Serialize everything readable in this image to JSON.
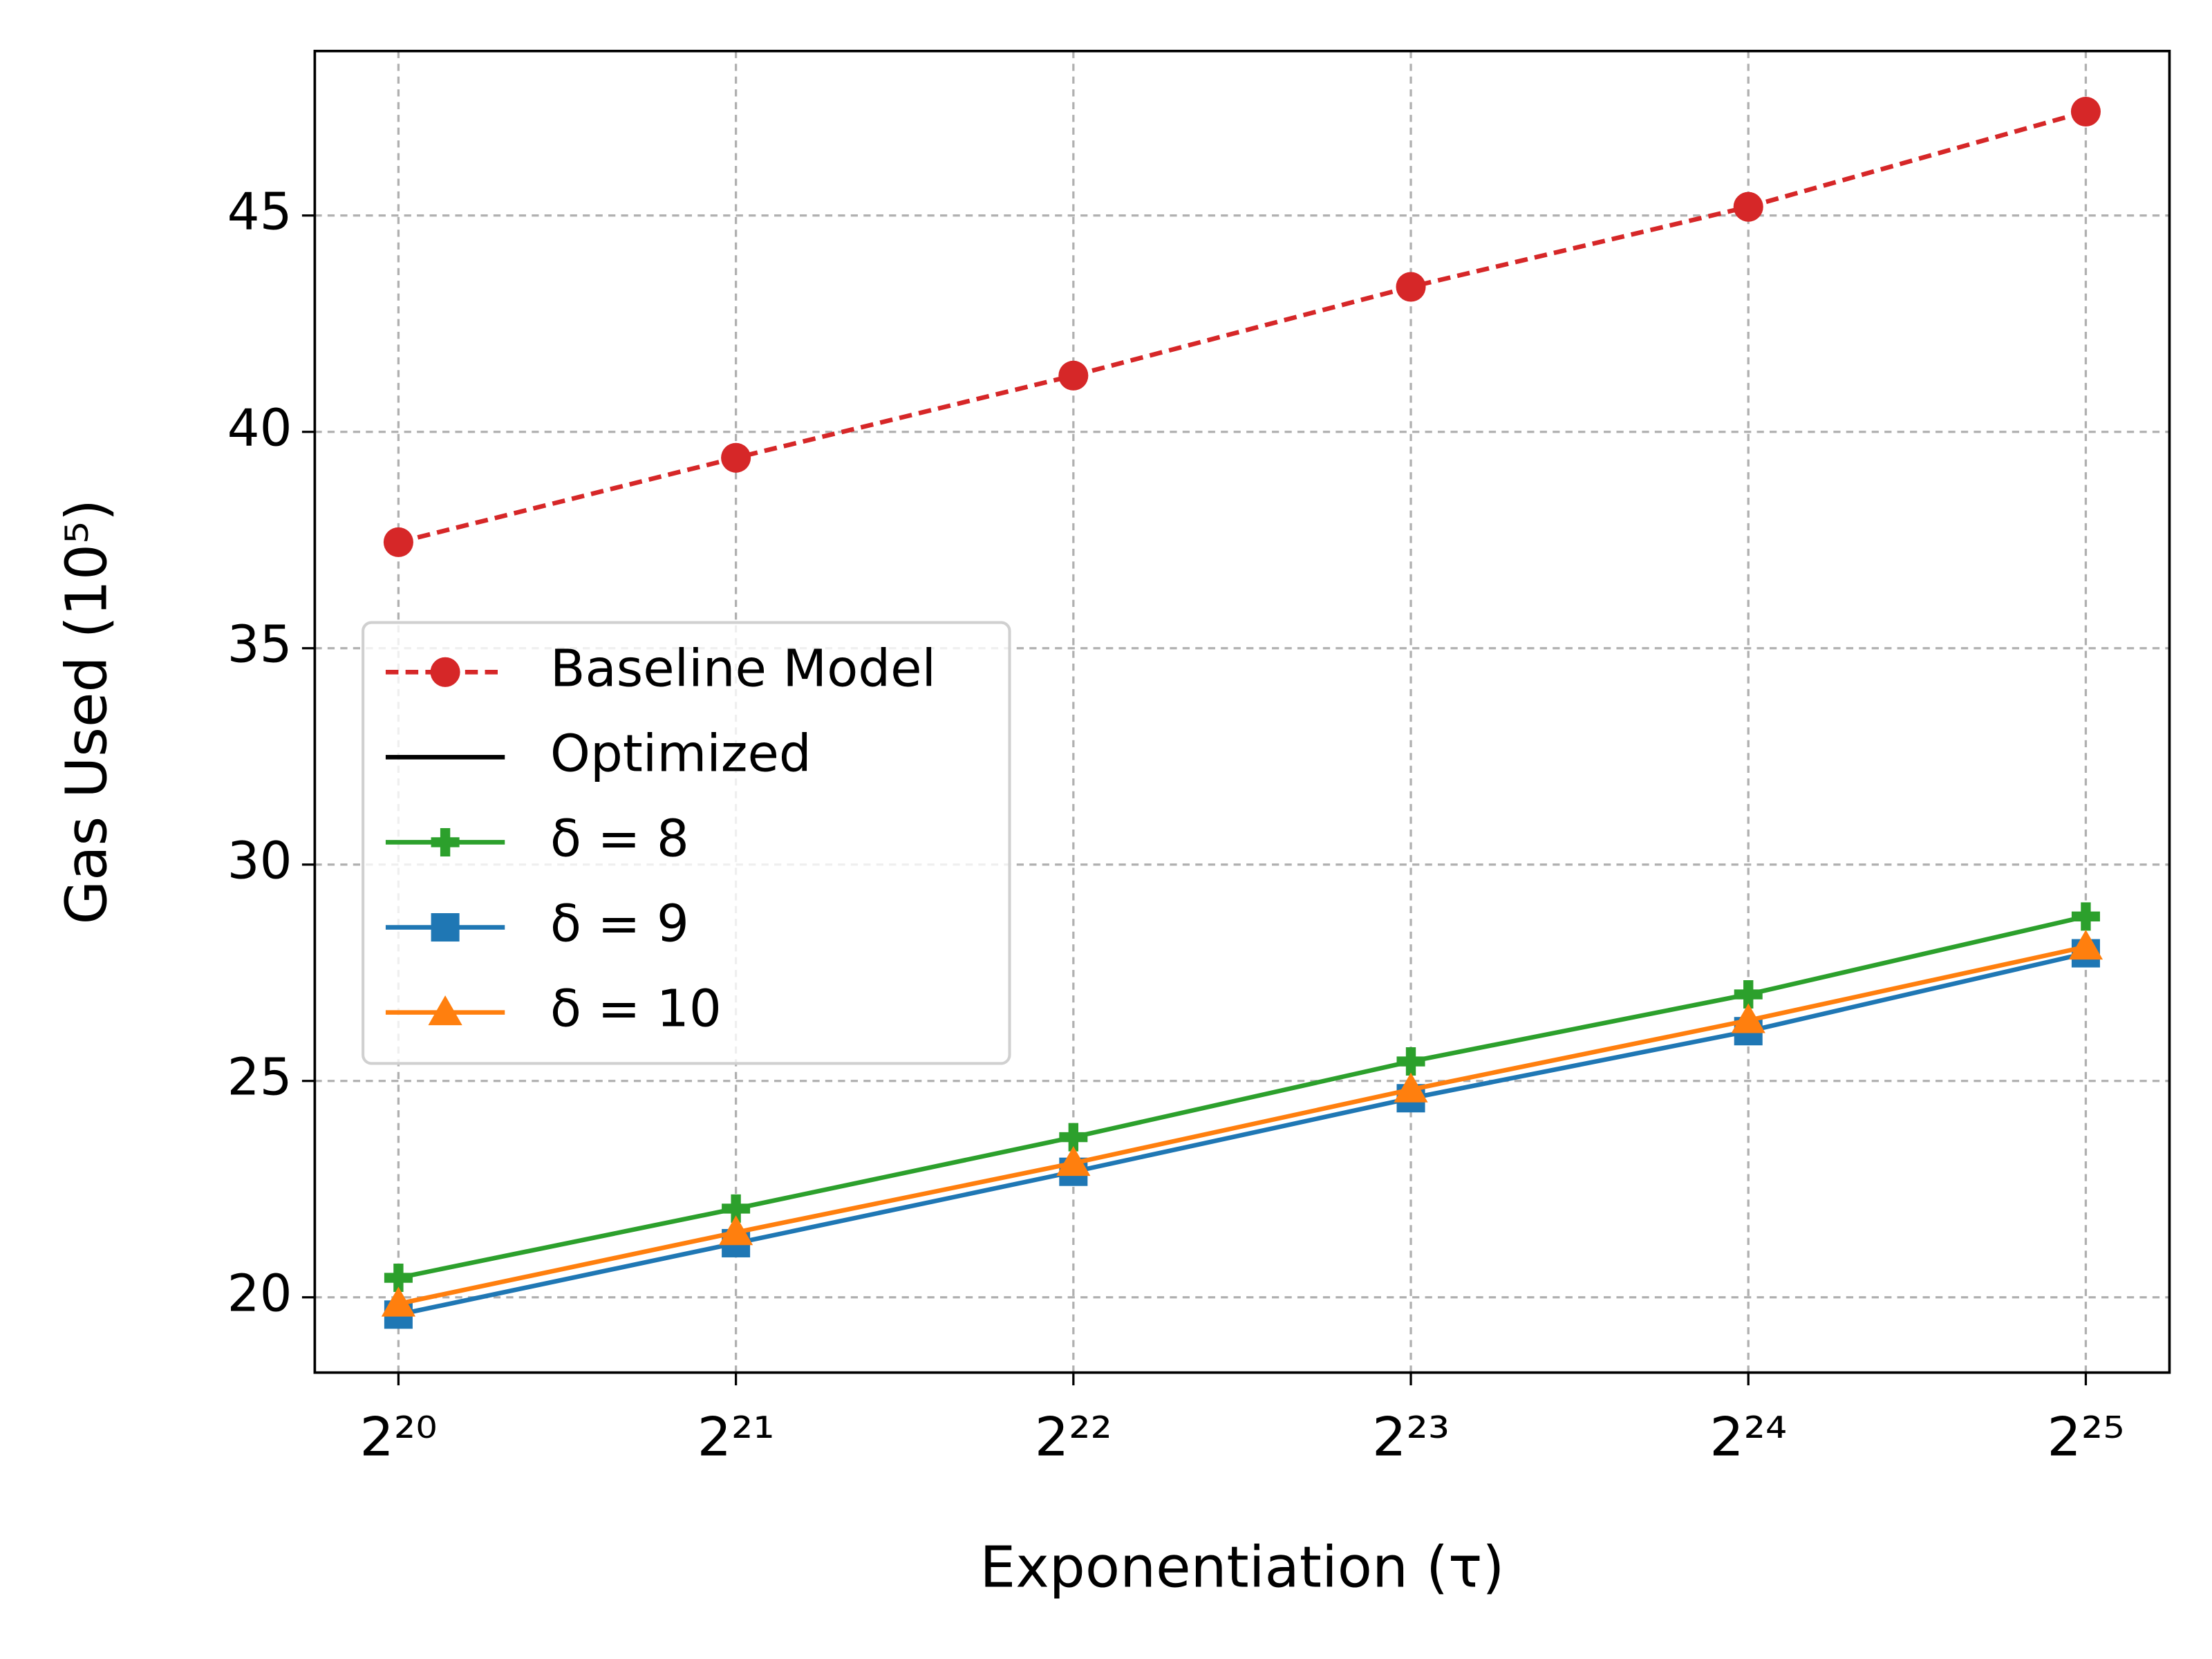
{
  "chart_data": {
    "type": "line",
    "xlabel": "Exponentiation (τ)",
    "ylabel": "Gas Used (10⁵)",
    "categories": [
      "2²⁰",
      "2²¹",
      "2²²",
      "2²³",
      "2²⁴",
      "2²⁵"
    ],
    "series": [
      {
        "name": "Baseline Model",
        "color": "#d62728",
        "linestyle": "dashed",
        "marker": "circle",
        "values": [
          37.45,
          39.4,
          41.3,
          43.35,
          45.2,
          47.4
        ]
      },
      {
        "name": "Optimized",
        "color": "#000000",
        "linestyle": "solid",
        "marker": "none",
        "values": [
          null,
          null,
          null,
          null,
          null,
          null
        ]
      },
      {
        "name": "δ = 8",
        "color": "#2ca02c",
        "linestyle": "solid",
        "marker": "plus",
        "values": [
          20.45,
          22.05,
          23.7,
          25.45,
          27.0,
          28.8
        ]
      },
      {
        "name": "δ = 9",
        "color": "#1f77b4",
        "linestyle": "solid",
        "marker": "square",
        "values": [
          19.6,
          21.25,
          22.9,
          24.6,
          26.15,
          27.95
        ]
      },
      {
        "name": "δ = 10",
        "color": "#ff7f0e",
        "linestyle": "solid",
        "marker": "triangle",
        "values": [
          19.85,
          21.5,
          23.1,
          24.8,
          26.4,
          28.1
        ]
      }
    ],
    "ylim": [
      18.26,
      48.8
    ],
    "yticks": [
      20,
      25,
      30,
      35,
      40,
      45
    ],
    "grid": true,
    "legend": "center left"
  }
}
